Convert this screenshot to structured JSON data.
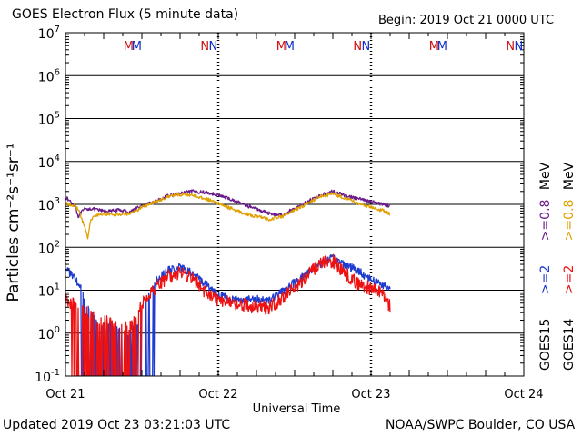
{
  "header": {
    "title": "GOES Electron Flux (5 minute data)",
    "begin": "Begin: 2019 Oct 21 0000 UTC"
  },
  "footer": {
    "updated": "Updated 2019 Oct 23 03:21:03 UTC",
    "source": "NOAA/SWPC Boulder, CO USA"
  },
  "colors": {
    "goes15_e08": "#6a1b8a",
    "goes14_e08": "#e0a000",
    "goes15_e2": "#1f3cd0",
    "goes14_e2": "#ee1111",
    "marker_m": "#d01010",
    "marker_n": "#1030c8",
    "threshold": "#000000"
  },
  "chart_data": {
    "type": "line",
    "title": "GOES Electron Flux (5 minute data)",
    "xlabel": "Universal Time",
    "ylabel": "Particles cm⁻²s⁻¹sr⁻¹",
    "yscale": "log",
    "ylim": [
      0.1,
      10000000
    ],
    "xlim_hours": [
      0,
      72
    ],
    "x_ticks": [
      {
        "hour": 0,
        "label": "Oct 21"
      },
      {
        "hour": 24,
        "label": "Oct 22"
      },
      {
        "hour": 48,
        "label": "Oct 23"
      },
      {
        "hour": 72,
        "label": "Oct 24"
      }
    ],
    "y_ticks": [
      {
        "base": "10",
        "exp": "-1",
        "value": 0.1
      },
      {
        "base": "10",
        "exp": "0",
        "value": 1
      },
      {
        "base": "10",
        "exp": "1",
        "value": 10
      },
      {
        "base": "10",
        "exp": "2",
        "value": 100
      },
      {
        "base": "10",
        "exp": "3",
        "value": 1000
      },
      {
        "base": "10",
        "exp": "4",
        "value": 10000
      },
      {
        "base": "10",
        "exp": "5",
        "value": 100000
      },
      {
        "base": "10",
        "exp": "6",
        "value": 1000000
      },
      {
        "base": "10",
        "exp": "7",
        "value": 10000000
      }
    ],
    "threshold": {
      "value": 1000,
      "style": "dashed"
    },
    "markers": [
      {
        "label": "M",
        "hour": 9.9,
        "sat": "GOES14"
      },
      {
        "label": "M",
        "hour": 11.2,
        "sat": "GOES15"
      },
      {
        "label": "N",
        "hour": 21.9,
        "sat": "GOES14"
      },
      {
        "label": "N",
        "hour": 23.2,
        "sat": "GOES15"
      },
      {
        "label": "M",
        "hour": 33.9,
        "sat": "GOES14"
      },
      {
        "label": "M",
        "hour": 35.2,
        "sat": "GOES15"
      },
      {
        "label": "N",
        "hour": 45.9,
        "sat": "GOES14"
      },
      {
        "label": "N",
        "hour": 47.2,
        "sat": "GOES15"
      },
      {
        "label": "M",
        "hour": 57.9,
        "sat": "GOES14"
      },
      {
        "label": "M",
        "hour": 59.2,
        "sat": "GOES15"
      },
      {
        "label": "N",
        "hour": 69.9,
        "sat": "GOES14"
      },
      {
        "label": "N",
        "hour": 71.2,
        "sat": "GOES15"
      }
    ],
    "legend": {
      "placement": "right",
      "groups": [
        {
          "satellite": "GOES15",
          "entries": [
            {
              "label": ">=2",
              "color_key": "goes15_e2"
            },
            {
              "label": ">=0.8",
              "unit": "MeV",
              "color_key": "goes15_e08"
            }
          ]
        },
        {
          "satellite": "GOES14",
          "entries": [
            {
              "label": ">=2",
              "color_key": "goes14_e2"
            },
            {
              "label": ">=0.8",
              "unit": "MeV",
              "color_key": "goes14_e08"
            }
          ]
        }
      ]
    },
    "series": [
      {
        "name": "GOES15 >=0.8 MeV",
        "color_key": "goes15_e08",
        "x": [
          0,
          0.5,
          1,
          1.5,
          2,
          2.5,
          3,
          4,
          5,
          6,
          7,
          8,
          9,
          10,
          11,
          12,
          14,
          16,
          18,
          20,
          22,
          24,
          26,
          28,
          30,
          32,
          34,
          36,
          38,
          40,
          42,
          44,
          46,
          48,
          50,
          51
        ],
        "y": [
          1500,
          1250,
          1100,
          950,
          520,
          650,
          760,
          800,
          740,
          700,
          690,
          730,
          720,
          660,
          800,
          900,
          1150,
          1550,
          1800,
          2000,
          1900,
          1650,
          1300,
          1000,
          780,
          620,
          560,
          800,
          1150,
          1600,
          2000,
          1600,
          1350,
          1150,
          1000,
          920
        ],
        "noise": 0.04
      },
      {
        "name": "GOES14 >=0.8 MeV",
        "color_key": "goes14_e08",
        "x": [
          0,
          1,
          2,
          3,
          3.5,
          4,
          5,
          6,
          8,
          10,
          11,
          12,
          14,
          16,
          18,
          20,
          22,
          24,
          26,
          28,
          30,
          32,
          34,
          36,
          38,
          40,
          42,
          44,
          46,
          48,
          50,
          51
        ],
        "y": [
          1000,
          1000,
          780,
          300,
          170,
          460,
          560,
          600,
          580,
          610,
          680,
          860,
          1120,
          1500,
          1700,
          1650,
          1350,
          1050,
          800,
          620,
          520,
          450,
          520,
          720,
          1050,
          1500,
          1750,
          1400,
          1050,
          850,
          700,
          600
        ],
        "noise": 0.04
      },
      {
        "name": "GOES15 >=2 MeV",
        "color_key": "goes15_e2",
        "x": [
          0,
          1,
          2,
          3,
          4,
          5,
          6,
          7,
          8,
          9,
          10,
          11,
          12,
          13,
          14,
          16,
          18,
          20,
          22,
          24,
          26,
          28,
          30,
          32,
          34,
          36,
          38,
          40,
          42,
          44,
          46,
          48,
          50,
          51
        ],
        "y": [
          35,
          22,
          14,
          7,
          3,
          2,
          1.5,
          1.4,
          1.6,
          1.2,
          1.0,
          1.5,
          3,
          8,
          15,
          28,
          34,
          24,
          14,
          8,
          6,
          6,
          6,
          6,
          9,
          15,
          25,
          42,
          55,
          40,
          28,
          18,
          13,
          11
        ],
        "noise": 0.1,
        "dropout": {
          "x0": 2.5,
          "x1": 14.0,
          "prob": 0.65,
          "floor": 0.1
        }
      },
      {
        "name": "GOES14 >=2 MeV",
        "color_key": "goes14_e2",
        "x": [
          0,
          1,
          2,
          3,
          4,
          5,
          6,
          7,
          8,
          9,
          10,
          11,
          12,
          14,
          16,
          18,
          20,
          22,
          24,
          26,
          28,
          30,
          32,
          34,
          36,
          38,
          40,
          42,
          44,
          46,
          48,
          50,
          51
        ],
        "y": [
          6,
          5,
          4,
          3,
          2.5,
          2.2,
          2,
          1.8,
          1.6,
          1.3,
          1.3,
          2,
          5,
          11,
          20,
          26,
          18,
          9,
          6,
          5,
          4.5,
          4,
          4,
          6,
          12,
          22,
          40,
          48,
          24,
          14,
          11,
          8,
          4
        ],
        "noise": 0.16,
        "dropout": {
          "x0": 1.0,
          "x1": 12.0,
          "prob": 0.6,
          "floor": 0.1
        }
      }
    ]
  }
}
